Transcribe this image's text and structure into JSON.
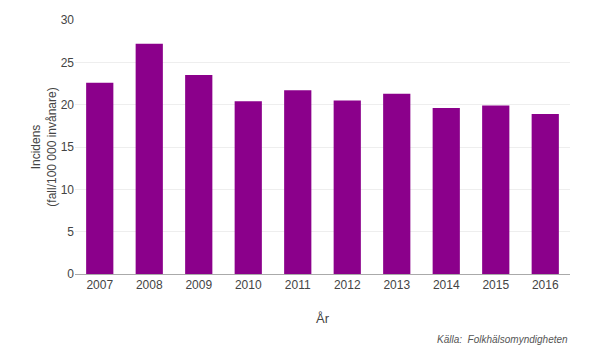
{
  "chart_data": {
    "type": "bar",
    "categories": [
      "2007",
      "2008",
      "2009",
      "2010",
      "2011",
      "2012",
      "2013",
      "2014",
      "2015",
      "2016"
    ],
    "values": [
      22.6,
      27.2,
      23.5,
      20.4,
      21.7,
      20.5,
      21.3,
      19.6,
      19.9,
      18.9
    ],
    "color": "#8B008B",
    "xlabel": "År",
    "ylabel": "Incidens\n(fall/100 000 invånare)",
    "annotation": "Källa:  Folkhälsomyndigheten",
    "ylim": [
      0,
      30
    ],
    "yticks": [
      0,
      5,
      10,
      15,
      20,
      25,
      30
    ],
    "grid": true
  }
}
